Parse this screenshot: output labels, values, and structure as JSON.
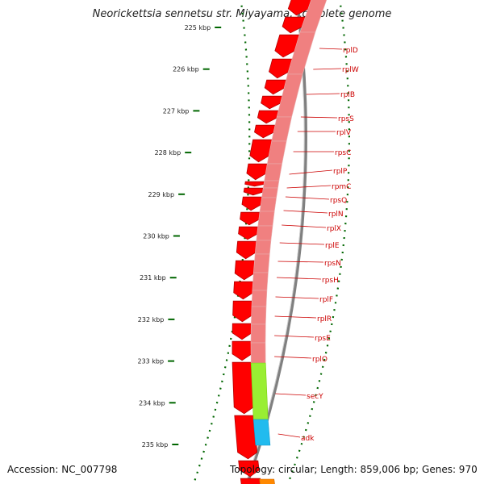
{
  "title": "Neorickettsia sennetsu str. Miyayama, complete genome",
  "footer": {
    "accession": "Accession: NC_007798",
    "summary": "Topology: circular; Length: 859,006 bp; Genes: 970"
  },
  "ticks": [
    {
      "label": "225 kbp"
    },
    {
      "label": "226 kbp"
    },
    {
      "label": "227 kbp"
    },
    {
      "label": "228 kbp"
    },
    {
      "label": "229 kbp"
    },
    {
      "label": "230 kbp"
    },
    {
      "label": "231 kbp"
    },
    {
      "label": "232 kbp"
    },
    {
      "label": "233 kbp"
    },
    {
      "label": "234 kbp"
    },
    {
      "label": "235 kbp"
    }
  ],
  "genes": [
    {
      "name": "rplD"
    },
    {
      "name": "rplW"
    },
    {
      "name": "rplB"
    },
    {
      "name": "rpsS"
    },
    {
      "name": "rplV"
    },
    {
      "name": "rpsC"
    },
    {
      "name": "rplP"
    },
    {
      "name": "rpmC"
    },
    {
      "name": "rpsQ"
    },
    {
      "name": "rplN"
    },
    {
      "name": "rplX"
    },
    {
      "name": "rplE"
    },
    {
      "name": "rpsN"
    },
    {
      "name": "rpsH"
    },
    {
      "name": "rplF"
    },
    {
      "name": "rplR"
    },
    {
      "name": "rpsE"
    },
    {
      "name": "rplO"
    },
    {
      "name": "secY"
    },
    {
      "name": "adk"
    }
  ],
  "colors": {
    "cds": "#ff0000",
    "cds_stroke": "#b30000",
    "backbone": "#808080",
    "ribosomal_track": "#f08080",
    "secY_track": "#99ee33",
    "adk_track": "#22bbee",
    "extra_feature": "#ff8800",
    "tick": "#006600",
    "label": "#cc0000"
  }
}
